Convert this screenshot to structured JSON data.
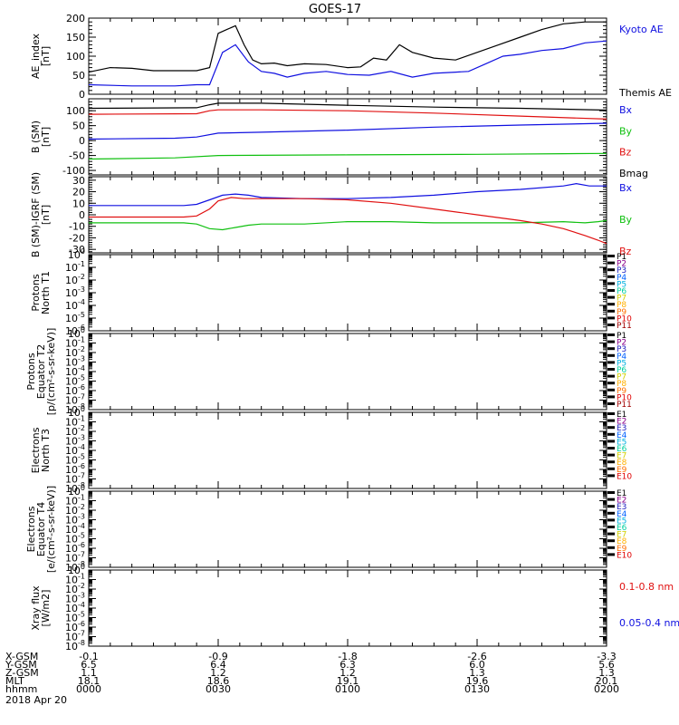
{
  "title": "GOES-17",
  "colors": {
    "black": "#000000",
    "blue": "#1010e0",
    "green": "#10c010",
    "red": "#e01010",
    "p": [
      "#000000",
      "#8a008a",
      "#2020c0",
      "#0060ff",
      "#00b0e0",
      "#00d0a0",
      "#d0d000",
      "#ffb000",
      "#ff7000",
      "#e00000",
      "#a00000"
    ]
  },
  "chart_data": [
    {
      "id": "ae",
      "type": "line",
      "ylabel": [
        "AE_index",
        "[nT]"
      ],
      "ylim": [
        0,
        200
      ],
      "yticks": [
        0,
        50,
        100,
        150,
        200
      ],
      "ytick_labels": [
        "0",
        "50",
        "100",
        "150",
        "200"
      ],
      "series": [
        {
          "name": "Kyoto AE",
          "color": "blue",
          "x": [
            0,
            10,
            20,
            25,
            28,
            31,
            34,
            37,
            40,
            43,
            46,
            50,
            55,
            60,
            65,
            70,
            75,
            80,
            85,
            88,
            92,
            96,
            100,
            105,
            110,
            115,
            120
          ],
          "y": [
            25,
            22,
            22,
            25,
            25,
            110,
            130,
            85,
            60,
            55,
            45,
            55,
            60,
            52,
            50,
            60,
            45,
            55,
            58,
            60,
            80,
            100,
            105,
            115,
            120,
            135,
            140
          ]
        },
        {
          "name": "Themis AE",
          "color": "black",
          "x": [
            0,
            5,
            10,
            15,
            20,
            25,
            28,
            30,
            32,
            34,
            36,
            38,
            40,
            43,
            46,
            50,
            55,
            60,
            63,
            66,
            69,
            72,
            75,
            80,
            85,
            90,
            95,
            100,
            105,
            110,
            115,
            120
          ],
          "y": [
            58,
            70,
            68,
            62,
            62,
            62,
            70,
            160,
            170,
            180,
            130,
            90,
            80,
            82,
            75,
            80,
            78,
            70,
            72,
            95,
            90,
            130,
            110,
            95,
            90,
            110,
            130,
            150,
            170,
            185,
            190,
            190
          ]
        }
      ]
    },
    {
      "id": "b",
      "type": "line",
      "ylabel": [
        "B (SM)",
        "[nT]"
      ],
      "ylim": [
        -115,
        140
      ],
      "yticks": [
        -100,
        -50,
        0,
        50,
        100
      ],
      "ytick_labels": [
        "-100",
        "-50",
        "0",
        "50",
        "100"
      ],
      "series": [
        {
          "name": "Bx",
          "color": "blue",
          "x": [
            0,
            20,
            25,
            30,
            40,
            60,
            80,
            100,
            120
          ],
          "y": [
            5,
            8,
            12,
            25,
            28,
            35,
            45,
            52,
            58
          ]
        },
        {
          "name": "By",
          "color": "green",
          "x": [
            0,
            20,
            30,
            60,
            90,
            110,
            120
          ],
          "y": [
            -62,
            -58,
            -50,
            -48,
            -46,
            -44,
            -43
          ]
        },
        {
          "name": "Bz",
          "color": "red",
          "x": [
            0,
            25,
            28,
            30,
            40,
            60,
            80,
            100,
            120
          ],
          "y": [
            88,
            90,
            100,
            103,
            103,
            100,
            92,
            82,
            72
          ]
        },
        {
          "name": "Bmag",
          "color": "black",
          "x": [
            0,
            25,
            28,
            30,
            40,
            60,
            80,
            100,
            120
          ],
          "y": [
            108,
            110,
            120,
            125,
            125,
            118,
            112,
            108,
            102
          ]
        }
      ]
    },
    {
      "id": "bd",
      "type": "line",
      "ylabel": [
        "B (SM)-IGRF (SM)",
        "[nT]"
      ],
      "ylim": [
        -33,
        33
      ],
      "yticks": [
        -30,
        -20,
        -10,
        0,
        10,
        20,
        30
      ],
      "ytick_labels": [
        "-30",
        "-20",
        "-10",
        "0",
        "10",
        "20",
        "30"
      ],
      "series": [
        {
          "name": "Bx",
          "color": "blue",
          "x": [
            0,
            22,
            25,
            28,
            31,
            34,
            37,
            40,
            50,
            60,
            70,
            80,
            90,
            100,
            110,
            113,
            116,
            120
          ],
          "y": [
            8,
            8,
            9,
            13,
            17,
            18,
            17,
            15,
            14,
            14,
            15,
            17,
            20,
            22,
            25,
            27,
            25,
            25
          ]
        },
        {
          "name": "By",
          "color": "green",
          "x": [
            0,
            22,
            25,
            28,
            31,
            34,
            37,
            40,
            50,
            60,
            70,
            80,
            90,
            100,
            110,
            115,
            118,
            120
          ],
          "y": [
            -7,
            -7,
            -8,
            -12,
            -13,
            -11,
            -9,
            -8,
            -8,
            -6,
            -6,
            -7,
            -7,
            -7,
            -6,
            -7,
            -6,
            -5
          ]
        },
        {
          "name": "Bz",
          "color": "red",
          "x": [
            0,
            22,
            25,
            28,
            30,
            33,
            36,
            40,
            50,
            60,
            70,
            80,
            90,
            100,
            105,
            110,
            115,
            118,
            120
          ],
          "y": [
            -2,
            -2,
            -1,
            5,
            12,
            15,
            14,
            14,
            14,
            13,
            10,
            5,
            0,
            -5,
            -8,
            -12,
            -18,
            -22,
            -25
          ]
        }
      ]
    },
    {
      "id": "pn",
      "type": "line",
      "ylabel": [
        "Protons",
        "North T1"
      ],
      "ylim": [
        -6,
        0
      ],
      "log": true,
      "yticks": [
        0,
        -1,
        -2,
        -3,
        -4,
        -5,
        -6
      ],
      "ytick_base": "10",
      "ytick_exps": [
        "0",
        "-1",
        "-2",
        "-3",
        "-4",
        "-5",
        "-6"
      ],
      "legend": [
        "P1",
        "P2",
        "P3",
        "P4",
        "P5",
        "P6",
        "P7",
        "P8",
        "P9",
        "P10",
        "P11"
      ],
      "series": []
    },
    {
      "id": "pe",
      "type": "line",
      "ylabel": [
        "Protons",
        "Equator T2",
        "[p/(cm²-s-sr-keV)]"
      ],
      "ylim": [
        -8,
        0
      ],
      "log": true,
      "yticks": [
        0,
        -1,
        -2,
        -3,
        -4,
        -5,
        -6,
        -7,
        -8
      ],
      "ytick_base": "10",
      "ytick_exps": [
        "0",
        "-1",
        "-2",
        "-3",
        "-4",
        "-5",
        "-6",
        "-7",
        "-8"
      ],
      "legend": [
        "P1",
        "P2",
        "P3",
        "P4",
        "P5",
        "P6",
        "P7",
        "P8",
        "P9",
        "P10",
        "P11"
      ],
      "series": []
    },
    {
      "id": "en",
      "type": "line",
      "ylabel": [
        "Electrons",
        "North T3"
      ],
      "ylim": [
        -8,
        0
      ],
      "log": true,
      "yticks": [
        0,
        -1,
        -2,
        -3,
        -4,
        -5,
        -6,
        -7,
        -8
      ],
      "ytick_base": "10",
      "ytick_exps": [
        "0",
        "-1",
        "-2",
        "-3",
        "-4",
        "-5",
        "-6",
        "-7",
        "-8"
      ],
      "legend": [
        "E1",
        "E2",
        "E3",
        "E4",
        "E5",
        "E6",
        "E7",
        "E8",
        "E9",
        "E10"
      ],
      "series": []
    },
    {
      "id": "ee",
      "type": "line",
      "ylabel": [
        "Electrons",
        "Equator T4",
        "[e/(cm²-s-sr-keV)]"
      ],
      "ylim": [
        -8,
        0
      ],
      "log": true,
      "yticks": [
        0,
        -1,
        -2,
        -3,
        -4,
        -5,
        -6,
        -7,
        -8
      ],
      "ytick_base": "10",
      "ytick_exps": [
        "0",
        "-1",
        "-2",
        "-3",
        "-4",
        "-5",
        "-6",
        "-7",
        "-8"
      ],
      "legend": [
        "E1",
        "E2",
        "E3",
        "E4",
        "E5",
        "E6",
        "E7",
        "E8",
        "E9",
        "E10"
      ],
      "series": []
    },
    {
      "id": "xr",
      "type": "line",
      "ylabel": [
        "Xray flux",
        "[W/m2]"
      ],
      "ylim": [
        -8,
        0
      ],
      "log": true,
      "yticks": [
        0,
        -1,
        -2,
        -3,
        -4,
        -5,
        -6,
        -7,
        -8
      ],
      "ytick_base": "10",
      "ytick_exps": [
        "0",
        "-1",
        "-2",
        "-3",
        "-4",
        "-5",
        "-6",
        "-7",
        "-8"
      ],
      "series": [],
      "legend_items": [
        {
          "label": "0.1-0.8 nm",
          "color": "red"
        },
        {
          "label": "0.05-0.4 nm",
          "color": "blue"
        }
      ]
    }
  ],
  "xaxis": {
    "range": [
      0,
      120
    ],
    "major_ticks": [
      0,
      30,
      60,
      90,
      120
    ],
    "rows": [
      {
        "label": "X-GSM",
        "values": [
          "-0.1",
          "-0.9",
          "-1.8",
          "-2.6",
          "-3.3"
        ]
      },
      {
        "label": "Y-GSM",
        "values": [
          "6.5",
          "6.4",
          "6.3",
          "6.0",
          "5.6"
        ]
      },
      {
        "label": "Z-GSM",
        "values": [
          "1.1",
          "1.2",
          "1.2",
          "1.3",
          "1.3"
        ]
      },
      {
        "label": "MLT",
        "values": [
          "18.1",
          "18.6",
          "19.1",
          "19.6",
          "20.1"
        ]
      },
      {
        "label": "hhmm",
        "values": [
          "0000",
          "0030",
          "0100",
          "0130",
          "0200"
        ]
      }
    ],
    "date": "2018 Apr 20"
  }
}
